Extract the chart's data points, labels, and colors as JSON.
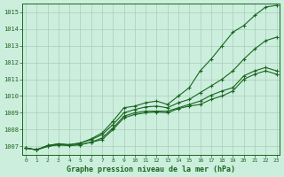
{
  "title": "Graphe pression niveau de la mer (hPa)",
  "bg_color": "#cceedd",
  "grid_color": "#aaccbb",
  "line_color": "#1a6620",
  "x_min": 0,
  "x_max": 23,
  "y_min": 1006.5,
  "y_max": 1015.5,
  "y_ticks": [
    1007,
    1008,
    1009,
    1010,
    1011,
    1012,
    1013,
    1014,
    1015
  ],
  "series": [
    [
      1006.9,
      1006.8,
      1007.0,
      1007.1,
      1007.05,
      1007.1,
      1007.25,
      1007.4,
      1008.0,
      1008.7,
      1008.9,
      1009.0,
      1009.05,
      1009.0,
      1009.25,
      1009.4,
      1009.5,
      1009.8,
      1010.0,
      1010.3,
      1011.0,
      1011.3,
      1011.5,
      1011.3
    ],
    [
      1006.9,
      1006.8,
      1007.0,
      1007.1,
      1007.05,
      1007.1,
      1007.25,
      1007.5,
      1008.1,
      1008.8,
      1009.0,
      1009.1,
      1009.1,
      1009.1,
      1009.3,
      1009.5,
      1009.7,
      1010.05,
      1010.3,
      1010.5,
      1011.2,
      1011.5,
      1011.7,
      1011.5
    ],
    [
      1006.9,
      1006.8,
      1007.05,
      1007.15,
      1007.1,
      1007.2,
      1007.4,
      1007.7,
      1008.3,
      1009.0,
      1009.2,
      1009.35,
      1009.4,
      1009.3,
      1009.6,
      1009.8,
      1010.2,
      1010.6,
      1011.0,
      1011.5,
      1012.2,
      1012.8,
      1013.3,
      1013.5
    ],
    [
      1006.9,
      1006.8,
      1007.05,
      1007.15,
      1007.1,
      1007.2,
      1007.45,
      1007.8,
      1008.5,
      1009.3,
      1009.4,
      1009.6,
      1009.7,
      1009.5,
      1010.0,
      1010.5,
      1011.5,
      1012.2,
      1013.0,
      1013.8,
      1014.2,
      1014.8,
      1015.3,
      1015.4
    ]
  ]
}
